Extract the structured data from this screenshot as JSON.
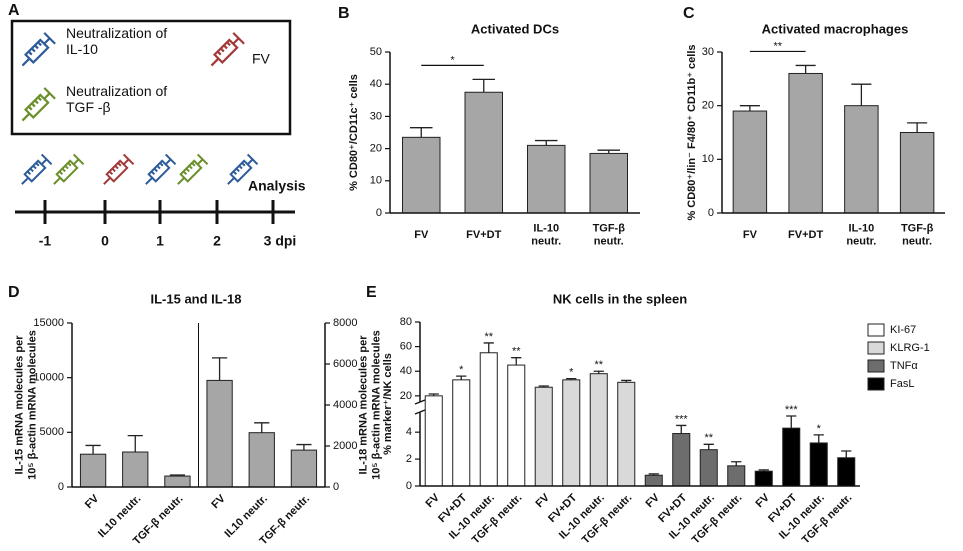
{
  "schematic": {
    "panel": "A",
    "items": [
      "Neutralization of\nIL-10",
      "FV",
      "Neutralization of\nTGF -β"
    ],
    "analysis": "Analysis",
    "timeline": [
      "-1",
      "0",
      "1",
      "2",
      "3 dpi"
    ]
  },
  "chart_data": [
    {
      "panel": "B",
      "type": "bar",
      "title": "Activated DCs",
      "ylabel": "% CD80⁺/CD11c⁺ cells",
      "categories": [
        "FV",
        "FV+DT",
        "IL-10\nneutr.",
        "TGF-β\nneutr."
      ],
      "values": [
        23.5,
        37.5,
        21,
        18.5
      ],
      "errors": [
        3,
        4,
        1.5,
        1
      ],
      "color": "#a6a6a6",
      "ylim": [
        0,
        50
      ],
      "yticks": [
        0,
        10,
        20,
        30,
        40,
        50
      ],
      "annotations": [
        {
          "text": "*",
          "between": [
            0,
            1
          ]
        }
      ]
    },
    {
      "panel": "C",
      "type": "bar",
      "title": "Activated macrophages",
      "ylabel": "% CD80⁺/lin⁻ F4/80⁺ CD11b⁺ cells",
      "categories": [
        "FV",
        "FV+DT",
        "IL-10\nneutr.",
        "TGF-β\nneutr."
      ],
      "values": [
        19,
        26,
        20,
        15
      ],
      "errors": [
        1,
        1.5,
        4,
        1.8
      ],
      "color": "#a6a6a6",
      "ylim": [
        0,
        30
      ],
      "yticks": [
        0,
        10,
        20,
        30
      ],
      "annotations": [
        {
          "text": "**",
          "between": [
            0,
            1
          ]
        }
      ]
    },
    {
      "panel": "D",
      "type": "dual-bar",
      "title": "IL-15 and IL-18",
      "ylabel": "IL-15 mRNA molecules per\n10⁵ β-actin mRNA molecules",
      "y2label": "IL-18 mRNA molecules per\n10⁵ β-actin mRNA molecules",
      "categories": [
        "FV",
        "IL10 neutr.",
        "TGF-β neutr."
      ],
      "series": [
        {
          "color": "#a6a6a6",
          "values": [
            3000,
            3200,
            1000
          ],
          "errors": [
            800,
            1500,
            100
          ]
        },
        {
          "color": "#a6a6a6",
          "axis": "y2",
          "values": [
            5200,
            2650,
            1800
          ],
          "errors": [
            1100,
            480,
            270
          ]
        }
      ],
      "ylim": [
        0,
        15000
      ],
      "yticks": [
        0,
        5000,
        10000,
        15000
      ],
      "y2lim": [
        0,
        8000
      ],
      "y2ticks": [
        0,
        2000,
        4000,
        6000,
        8000
      ]
    },
    {
      "panel": "E",
      "type": "broken-bar",
      "title": "NK cells in the spleen",
      "ylabel": "% marker⁺/NK cells",
      "categories": [
        "FV",
        "FV+DT",
        "IL-10 neutr.",
        "TGF-β neutr."
      ],
      "ylim": [
        0,
        5.5
      ],
      "yticks": [
        0,
        2,
        4
      ],
      "ylim_upper": [
        15,
        80
      ],
      "yticks_upper": [
        20,
        40,
        60,
        80
      ],
      "legend": "right",
      "series": [
        {
          "name": "KI-67",
          "color": "#ffffff",
          "scale": "upper",
          "values": [
            20,
            33,
            55,
            45
          ],
          "errors": [
            1.5,
            3,
            8,
            6
          ],
          "labels": [
            null,
            "*",
            "**",
            "**"
          ]
        },
        {
          "name": "KLRG-1",
          "color": "#d9d9d9",
          "scale": "upper",
          "values": [
            27,
            33,
            38,
            31
          ],
          "errors": [
            1,
            1,
            2,
            1.5
          ],
          "labels": [
            null,
            "*",
            "**",
            null
          ]
        },
        {
          "name": "TNFα",
          "color": "#6d6d6d",
          "scale": "lower",
          "values": [
            0.8,
            3.9,
            2.7,
            1.5
          ],
          "errors": [
            0.1,
            0.6,
            0.4,
            0.3
          ],
          "labels": [
            null,
            "***",
            "**",
            null
          ]
        },
        {
          "name": "FasL",
          "color": "#000000",
          "scale": "lower",
          "values": [
            1.1,
            4.3,
            3.2,
            2.1
          ],
          "errors": [
            0.1,
            0.9,
            0.6,
            0.5
          ],
          "labels": [
            null,
            "***",
            "*",
            null
          ]
        }
      ]
    }
  ]
}
